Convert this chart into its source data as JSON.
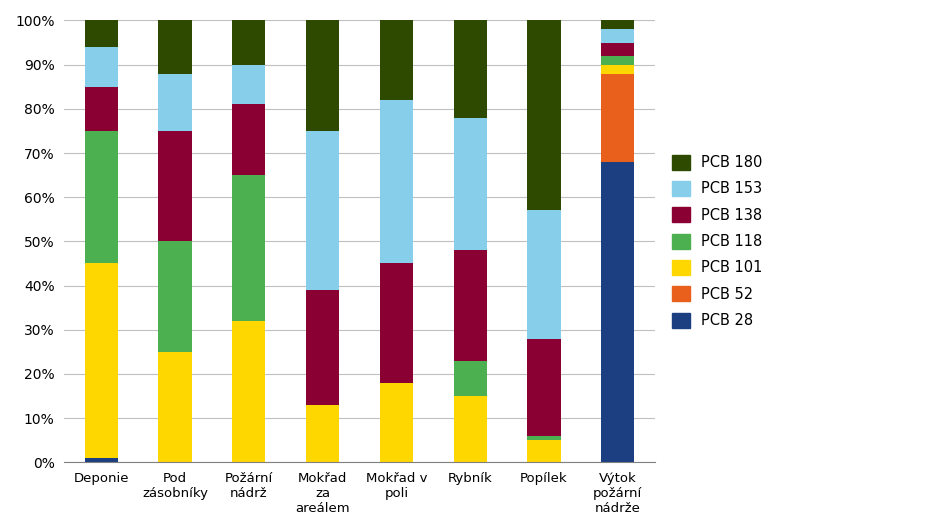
{
  "categories": [
    "Deponie",
    "Pod\nzásobníky",
    "Požární\nnádrž",
    "Mokřad\nza\nareálem",
    "Mokřad v\npoli",
    "Rybník",
    "Popílek",
    "Výtok\npožární\nnádrže"
  ],
  "series": [
    {
      "label": "PCB 28",
      "color": "#1B3F80",
      "values": [
        1,
        0,
        0,
        0,
        0,
        0,
        0,
        68
      ]
    },
    {
      "label": "PCB 52",
      "color": "#E8601C",
      "values": [
        0,
        0,
        0,
        0,
        0,
        0,
        0,
        20
      ]
    },
    {
      "label": "PCB 101",
      "color": "#FFD700",
      "values": [
        44,
        25,
        32,
        13,
        18,
        15,
        5,
        2
      ]
    },
    {
      "label": "PCB 118",
      "color": "#4CAF50",
      "values": [
        30,
        25,
        33,
        0,
        0,
        8,
        1,
        2
      ]
    },
    {
      "label": "PCB 138",
      "color": "#8B0032",
      "values": [
        10,
        25,
        16,
        26,
        27,
        25,
        22,
        3
      ]
    },
    {
      "label": "PCB 153",
      "color": "#87CEEB",
      "values": [
        9,
        13,
        9,
        36,
        37,
        30,
        29,
        3
      ]
    },
    {
      "label": "PCB 180",
      "color": "#2D4A00",
      "values": [
        6,
        12,
        10,
        25,
        18,
        22,
        43,
        2
      ]
    }
  ],
  "ylim": [
    0,
    100
  ],
  "yticks": [
    0,
    10,
    20,
    30,
    40,
    50,
    60,
    70,
    80,
    90,
    100
  ],
  "yticklabels": [
    "0%",
    "10%",
    "20%",
    "30%",
    "40%",
    "50%",
    "60%",
    "70%",
    "80%",
    "90%",
    "100%"
  ],
  "background_color": "#FFFFFF",
  "grid_color": "#C0C0C0",
  "bar_width": 0.45,
  "figsize": [
    9.44,
    5.3
  ],
  "dpi": 100
}
